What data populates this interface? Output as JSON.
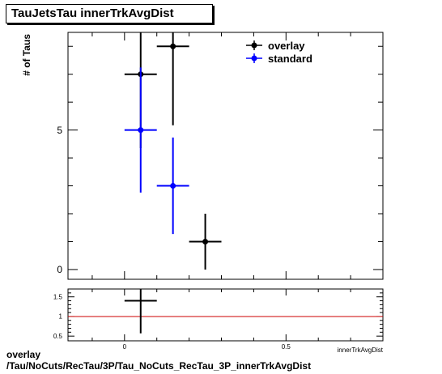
{
  "title": "TauJetsTau innerTrkAvgDist",
  "footer": {
    "line1": "overlay",
    "line2": "/Tau/NoCuts/RecTau/3P/Tau_NoCuts_RecTau_3P_innerTrkAvgDist"
  },
  "chart_data": [
    {
      "type": "scatter",
      "title": "TauJetsTau innerTrkAvgDist",
      "xlabel": "innerTrkAvgDist",
      "ylabel": "# of Taus",
      "xlim": [
        -0.175,
        0.8
      ],
      "ylim": [
        -0.35,
        8.5
      ],
      "xticks": [
        {
          "value": 0,
          "label": "0"
        },
        {
          "value": 0.5,
          "label": "0.5"
        }
      ],
      "yticks": [
        {
          "value": 0,
          "label": "0"
        },
        {
          "value": 5,
          "label": "5"
        }
      ],
      "legend_position": "top-right",
      "series": [
        {
          "name": "overlay",
          "color": "#000000",
          "points": [
            {
              "x": 0.05,
              "xerr": 0.05,
              "y": 7,
              "yerr": 2.65
            },
            {
              "x": 0.15,
              "xerr": 0.05,
              "y": 8,
              "yerr": 2.83
            },
            {
              "x": 0.25,
              "xerr": 0.05,
              "y": 1,
              "yerr": 1
            }
          ]
        },
        {
          "name": "standard",
          "color": "#0000ff",
          "points": [
            {
              "x": 0.05,
              "xerr": 0.05,
              "y": 5,
              "yerr": 2.24
            },
            {
              "x": 0.15,
              "xerr": 0.05,
              "y": 3,
              "yerr": 1.73
            }
          ]
        }
      ]
    },
    {
      "type": "scatter",
      "title": "",
      "xlabel": "innerTrkAvgDist",
      "ylabel": "",
      "xlim": [
        -0.175,
        0.8
      ],
      "ylim": [
        0.38,
        1.7
      ],
      "xticks": [
        {
          "value": 0,
          "label": "0"
        },
        {
          "value": 0.5,
          "label": "0.5"
        }
      ],
      "yticks": [
        {
          "value": 0.5,
          "label": "0.5"
        },
        {
          "value": 1,
          "label": "1"
        },
        {
          "value": 1.5,
          "label": "1.5"
        }
      ],
      "reference_line": {
        "y": 1,
        "color": "#cc0000"
      },
      "series": [
        {
          "color": "#000000",
          "points": [
            {
              "x": 0.05,
              "xerr": 0.05,
              "y": 1.4,
              "yerr": 0.83
            }
          ]
        }
      ]
    }
  ]
}
